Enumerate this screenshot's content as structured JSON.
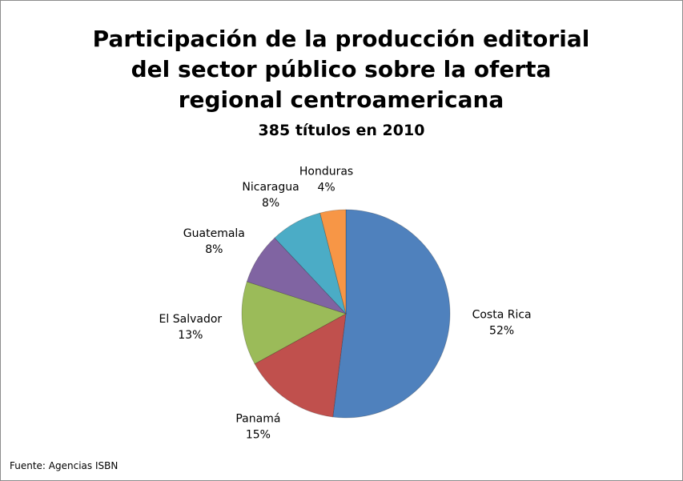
{
  "chart_data": {
    "type": "pie",
    "title": "Participación de la producción editorial del sector público sobre la oferta regional centroamericana",
    "subtitle": "385 títulos en 2010",
    "source": "Fuente: Agencias ISBN",
    "categories": [
      "Costa Rica",
      "Panamá",
      "El Salvador",
      "Guatemala",
      "Nicaragua",
      "Honduras"
    ],
    "values": [
      52,
      15,
      13,
      8,
      8,
      4
    ],
    "value_labels": [
      "52%",
      "15%",
      "13%",
      "8%",
      "8%",
      "4%"
    ],
    "colors": [
      "#4f81bd",
      "#c0504d",
      "#9bbb59",
      "#8064a2",
      "#4bacc6",
      "#f79646"
    ]
  }
}
